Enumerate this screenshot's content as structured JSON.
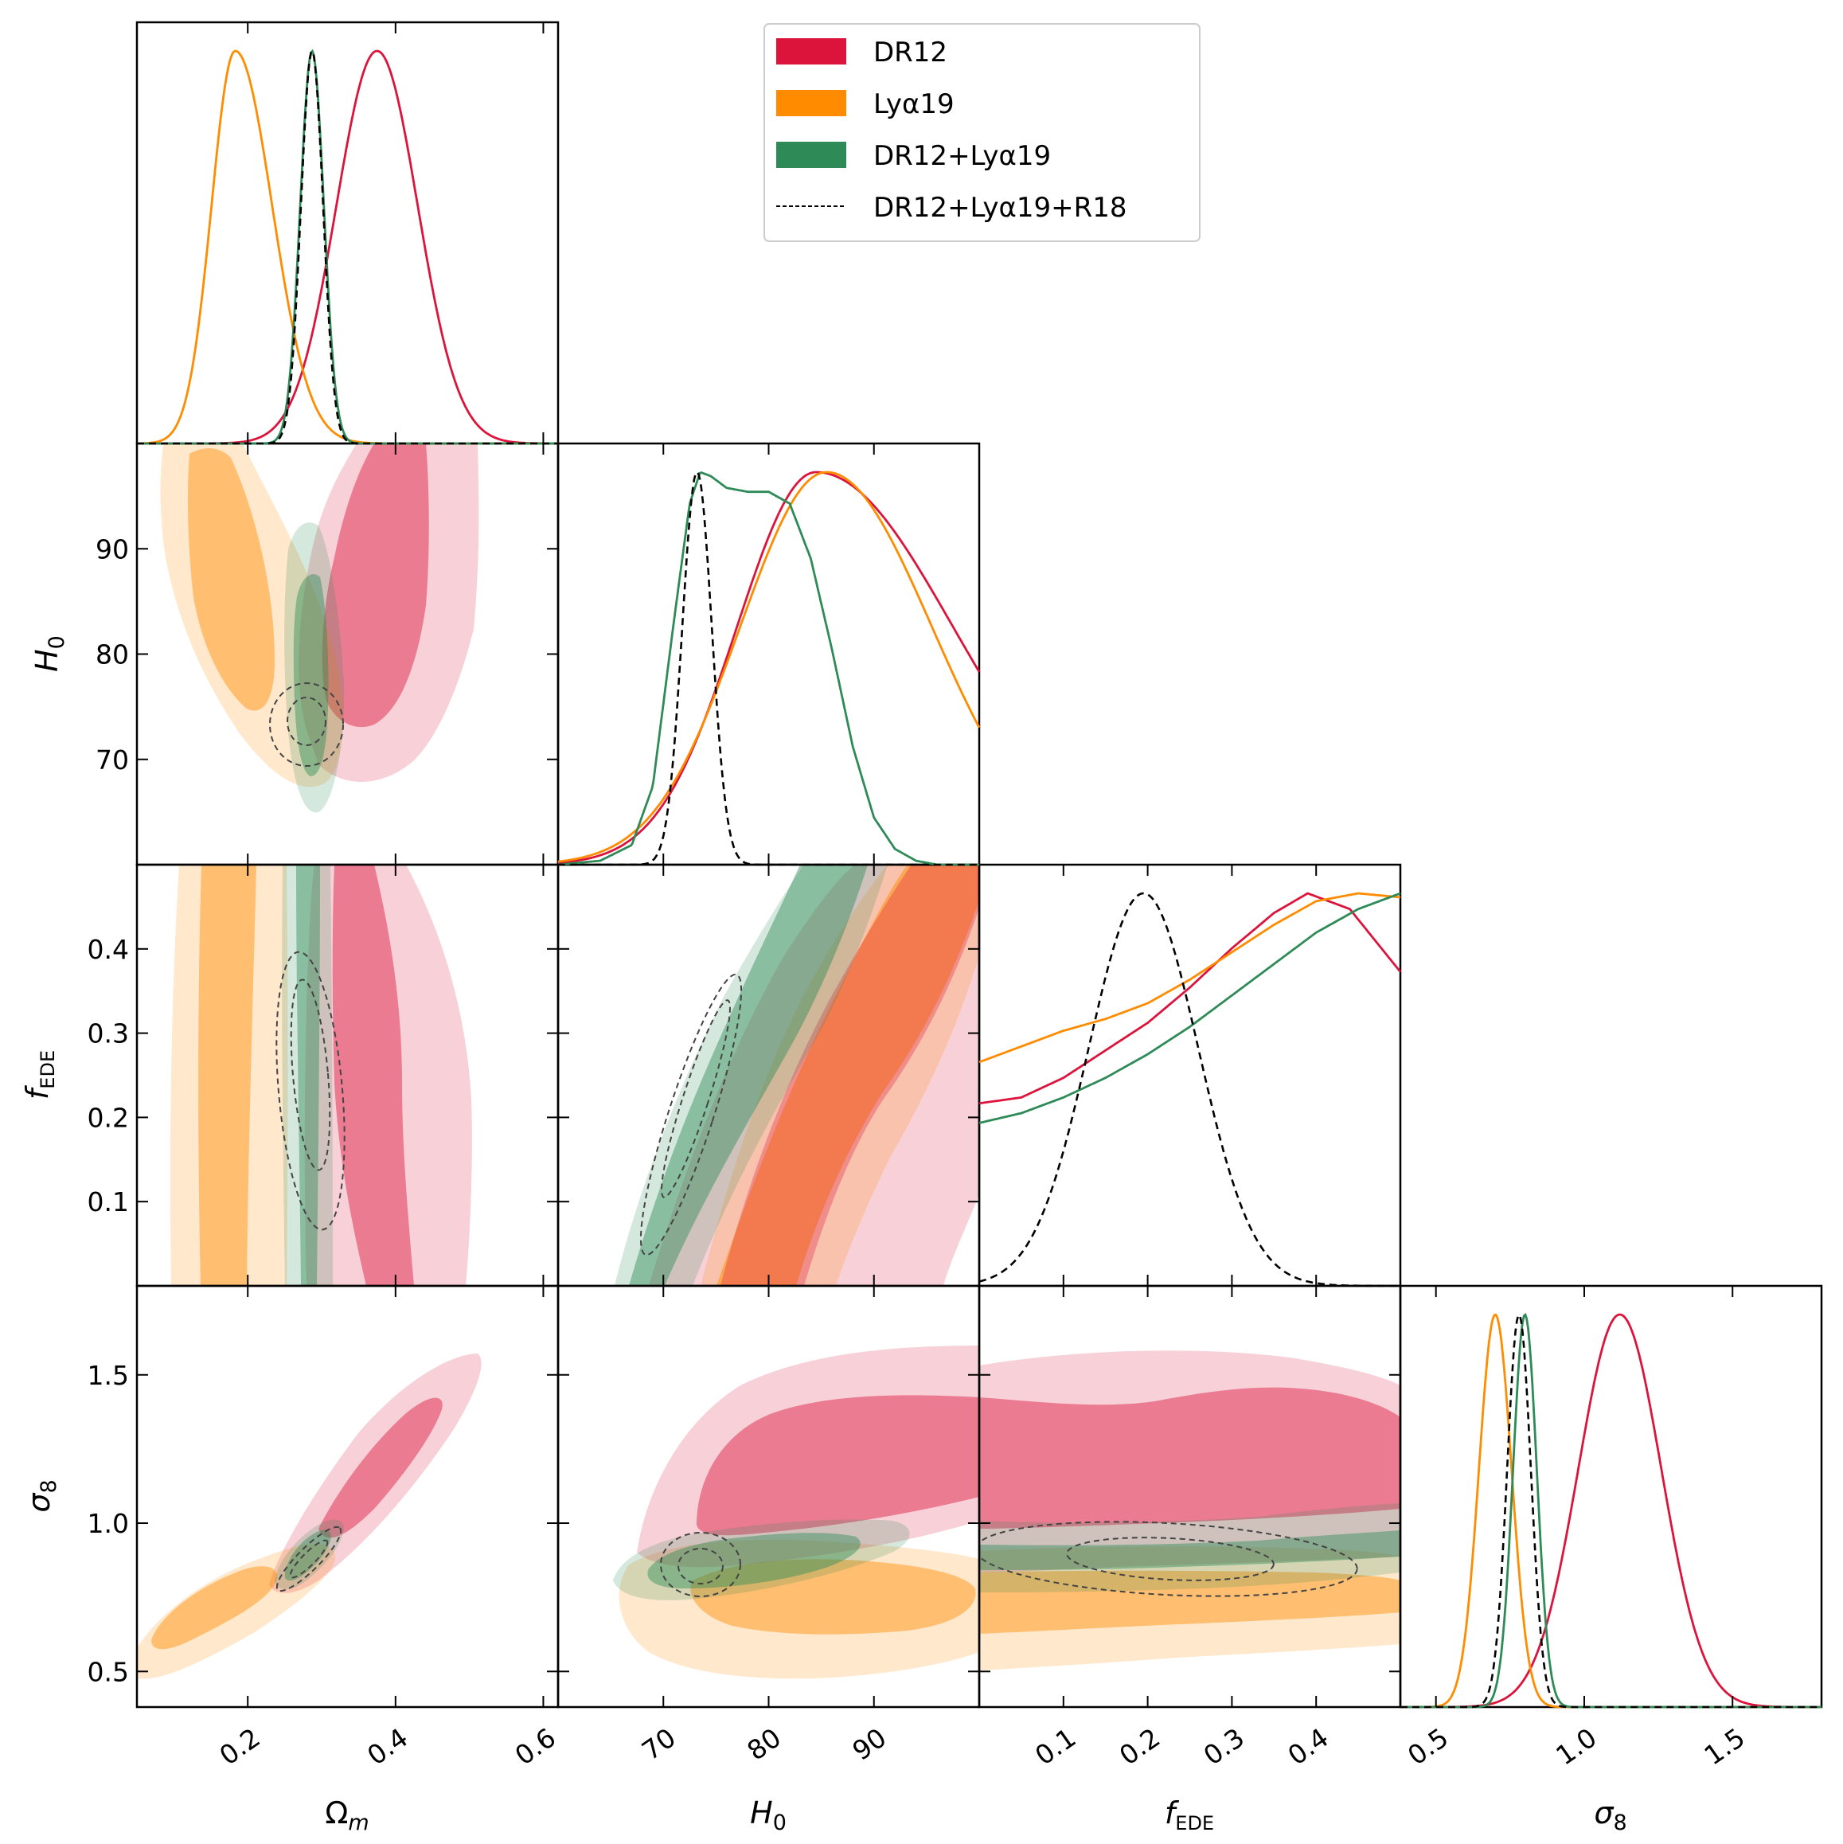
{
  "chart_data": {
    "type": "triangle-posterior",
    "title": "",
    "parameters": [
      {
        "key": "Om",
        "label": "Ωm",
        "latex": "\\Omega_m",
        "range": [
          0.05,
          0.62
        ],
        "ticks": [
          0.2,
          0.4,
          0.6
        ],
        "tick_labels": [
          "0.2",
          "0.4",
          "0.6"
        ]
      },
      {
        "key": "H0",
        "label": "H0",
        "latex": "H_0",
        "range": [
          60,
          100
        ],
        "ticks": [
          70,
          80,
          90
        ],
        "tick_labels": [
          "70",
          "80",
          "90"
        ]
      },
      {
        "key": "fEDE",
        "label": "fEDE",
        "latex": "f_{EDE}",
        "range": [
          0.0,
          0.5
        ],
        "ticks": [
          0.1,
          0.2,
          0.3,
          0.4
        ],
        "tick_labels": [
          "0.1",
          "0.2",
          "0.3",
          "0.4"
        ]
      },
      {
        "key": "s8",
        "label": "σ8",
        "latex": "\\sigma_8",
        "range": [
          0.38,
          1.8
        ],
        "ticks": [
          0.5,
          1.0,
          1.5
        ],
        "tick_labels": [
          "0.5",
          "1.0",
          "1.5"
        ]
      }
    ],
    "legend": {
      "position": "top-center",
      "entries": [
        {
          "label": "DR12",
          "style": "filled",
          "color": "#dc143c"
        },
        {
          "label": "Lyα19",
          "style": "filled",
          "color": "#ff8c00"
        },
        {
          "label": "DR12+Lyα19",
          "style": "filled",
          "color": "#2e8b57"
        },
        {
          "label": "DR12+Lyα19+R18",
          "style": "dashed",
          "color": "#000000"
        }
      ]
    },
    "series": [
      {
        "name": "DR12",
        "color": "#dc143c",
        "marginals": {
          "Om": {
            "type": "gauss",
            "mean": 0.375,
            "sigma": 0.055
          },
          "H0": {
            "type": "skew",
            "peak": 84.5,
            "sigma_left": 7.5,
            "sigma_right": 13.0
          },
          "fEDE": {
            "type": "points",
            "x": [
              0.0,
              0.05,
              0.1,
              0.15,
              0.2,
              0.25,
              0.3,
              0.35,
              0.39,
              0.44,
              0.5
            ],
            "y": [
              0.465,
              0.48,
              0.53,
              0.6,
              0.67,
              0.76,
              0.86,
              0.95,
              1.0,
              0.96,
              0.8
            ]
          },
          "s8": {
            "type": "gauss",
            "mean": 1.12,
            "sigma": 0.14
          }
        }
      },
      {
        "name": "Lyα19",
        "color": "#ff8c00",
        "marginals": {
          "Om": {
            "type": "skew",
            "peak": 0.183,
            "sigma_left": 0.032,
            "sigma_right": 0.05
          },
          "H0": {
            "type": "skew",
            "peak": 85.5,
            "sigma_left": 8.2,
            "sigma_right": 10.0
          },
          "fEDE": {
            "type": "points",
            "x": [
              0.0,
              0.05,
              0.1,
              0.15,
              0.2,
              0.25,
              0.3,
              0.35,
              0.4,
              0.45,
              0.5
            ],
            "y": [
              0.57,
              0.61,
              0.65,
              0.68,
              0.72,
              0.78,
              0.85,
              0.92,
              0.98,
              1.0,
              0.99
            ]
          },
          "s8": {
            "type": "gauss",
            "mean": 0.7,
            "sigma": 0.055
          }
        }
      },
      {
        "name": "DR12+Lyα19",
        "color": "#2e8b57",
        "marginals": {
          "Om": {
            "type": "gauss",
            "mean": 0.287,
            "sigma": 0.016
          },
          "H0": {
            "type": "points",
            "x": [
              60,
              64,
              67,
              69,
              71,
              72.5,
              73.5,
              74.5,
              76,
              78,
              80,
              82,
              84,
              86,
              88,
              90,
              92,
              94,
              96,
              100
            ],
            "y": [
              0.0,
              0.01,
              0.05,
              0.2,
              0.62,
              0.92,
              1.0,
              0.99,
              0.96,
              0.95,
              0.95,
              0.92,
              0.78,
              0.55,
              0.3,
              0.12,
              0.04,
              0.01,
              0.0,
              0.0
            ]
          },
          "fEDE": {
            "type": "points",
            "x": [
              0.0,
              0.05,
              0.1,
              0.15,
              0.2,
              0.25,
              0.3,
              0.35,
              0.4,
              0.45,
              0.5
            ],
            "y": [
              0.415,
              0.44,
              0.48,
              0.53,
              0.59,
              0.66,
              0.74,
              0.82,
              0.9,
              0.96,
              1.0
            ]
          },
          "s8": {
            "type": "gauss",
            "mean": 0.8,
            "sigma": 0.04
          }
        }
      },
      {
        "name": "DR12+Lyα19+R18",
        "color": "#000000",
        "marginals": {
          "Om": {
            "type": "gauss",
            "mean": 0.287,
            "sigma": 0.015
          },
          "H0": {
            "type": "gauss",
            "mean": 73.2,
            "sigma": 1.4
          },
          "fEDE": {
            "type": "gauss",
            "mean": 0.195,
            "sigma": 0.065
          },
          "s8": {
            "type": "gauss",
            "mean": 0.78,
            "sigma": 0.04
          }
        }
      }
    ]
  }
}
